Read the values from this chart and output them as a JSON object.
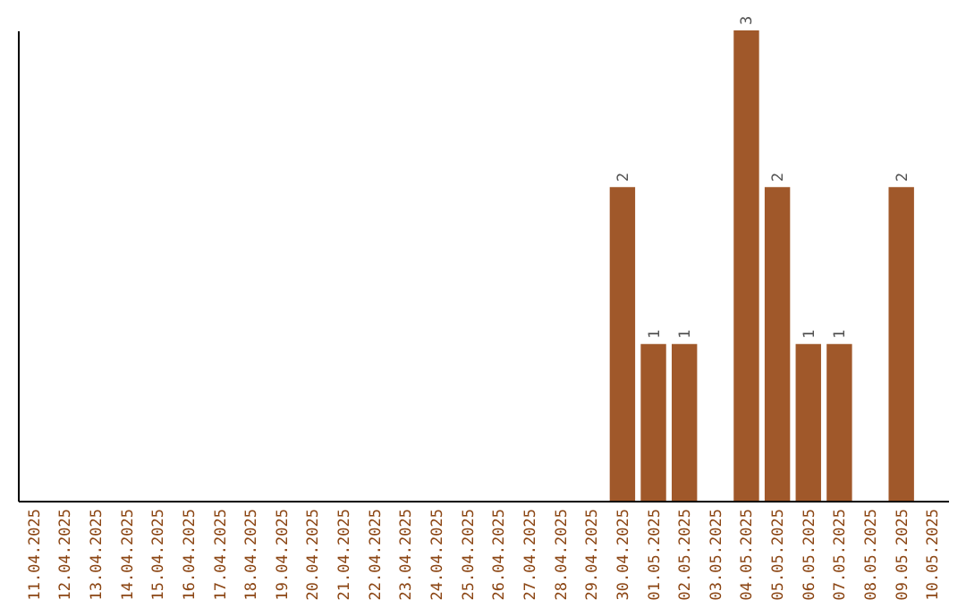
{
  "chart_data": {
    "type": "bar",
    "categories": [
      "11.04.2025",
      "12.04.2025",
      "13.04.2025",
      "14.04.2025",
      "15.04.2025",
      "16.04.2025",
      "17.04.2025",
      "18.04.2025",
      "19.04.2025",
      "20.04.2025",
      "21.04.2025",
      "22.04.2025",
      "23.04.2025",
      "24.04.2025",
      "25.04.2025",
      "26.04.2025",
      "27.04.2025",
      "28.04.2025",
      "29.04.2025",
      "30.04.2025",
      "01.05.2025",
      "02.05.2025",
      "03.05.2025",
      "04.05.2025",
      "05.05.2025",
      "06.05.2025",
      "07.05.2025",
      "08.05.2025",
      "09.05.2025",
      "10.05.2025"
    ],
    "values": [
      null,
      null,
      null,
      null,
      null,
      null,
      null,
      null,
      null,
      null,
      null,
      null,
      null,
      null,
      null,
      null,
      null,
      null,
      null,
      2,
      1,
      1,
      null,
      3,
      2,
      1,
      1,
      null,
      2,
      null
    ],
    "value_labels": [
      null,
      null,
      null,
      null,
      null,
      null,
      null,
      null,
      null,
      null,
      null,
      null,
      null,
      null,
      null,
      null,
      null,
      null,
      null,
      "2",
      "1",
      "1",
      null,
      "3",
      "2",
      "1",
      "1",
      null,
      "2",
      null
    ],
    "color": "#a0582a",
    "grid": false
  }
}
